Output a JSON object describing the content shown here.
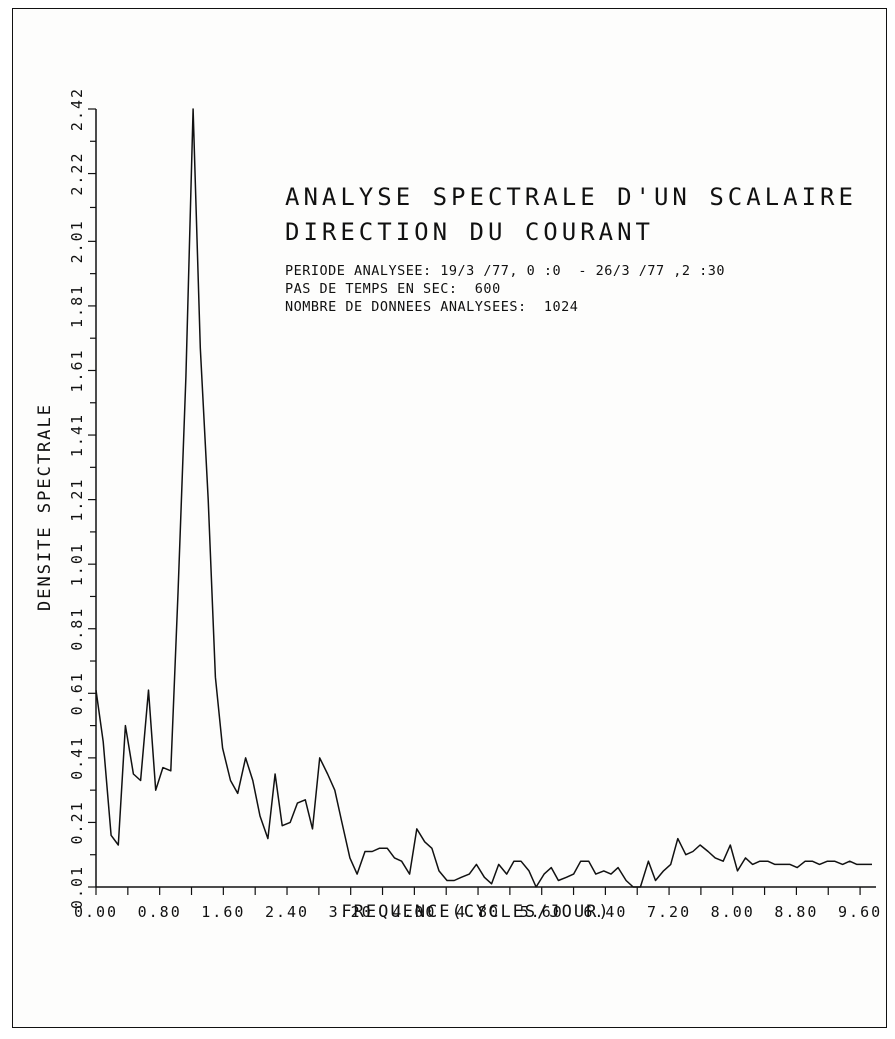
{
  "chart_data": {
    "type": "line",
    "title": "ANALYSE SPECTRALE D'UN SCALAIRE",
    "subtitle": "DIRECTION DU COURANT",
    "annotations": [
      "PERIODE ANALYSEE: 19/3 /77, 0 :0  - 26/3 /77 ,2 :30",
      "PAS DE TEMPS EN SEC:  600",
      "NOMBRE DE DONNEES ANALYSEES:  1024"
    ],
    "xlabel": "FREQUENCE(CYCLES/JOUR)",
    "ylabel": "DENSITE SPECTRALE",
    "x_ticks": [
      "0.00",
      "0.80",
      "1.60",
      "2.40",
      "3.20",
      "4.00",
      "4.80",
      "5.60",
      "6.40",
      "7.20",
      "8.00",
      "8.80",
      "9.60"
    ],
    "y_ticks": [
      "0.01",
      "0.21",
      "0.41",
      "0.61",
      "0.81",
      "1.01",
      "1.21",
      "1.41",
      "1.61",
      "1.81",
      "2.01",
      "2.22",
      "2.42"
    ],
    "xlim": [
      0,
      9.8
    ],
    "ylim": [
      0.01,
      2.42
    ],
    "grid": false,
    "series": [
      {
        "x": [
          0.0,
          0.09,
          0.19,
          0.28,
          0.37,
          0.47,
          0.56,
          0.66,
          0.75,
          0.84,
          0.94,
          1.03,
          1.13,
          1.22,
          1.31,
          1.41,
          1.5,
          1.59,
          1.69,
          1.78,
          1.88,
          1.97,
          2.06,
          2.16,
          2.25,
          2.34,
          2.44,
          2.53,
          2.63,
          2.72,
          2.81,
          2.91,
          3.0,
          3.09,
          3.19,
          3.28,
          3.38,
          3.47,
          3.56,
          3.66,
          3.75,
          3.84,
          3.94,
          4.03,
          4.13,
          4.22,
          4.31,
          4.41,
          4.5,
          4.59,
          4.69,
          4.78,
          4.88,
          4.97,
          5.06,
          5.16,
          5.25,
          5.34,
          5.44,
          5.53,
          5.63,
          5.72,
          5.81,
          5.91,
          6.0,
          6.09,
          6.19,
          6.28,
          6.38,
          6.47,
          6.56,
          6.66,
          6.75,
          6.84,
          6.94,
          7.03,
          7.13,
          7.22,
          7.31,
          7.41,
          7.5,
          7.59,
          7.69,
          7.78,
          7.88,
          7.97,
          8.06,
          8.16,
          8.25,
          8.34,
          8.44,
          8.53,
          8.63,
          8.72,
          8.81,
          8.91,
          9.0,
          9.09,
          9.19,
          9.28,
          9.38,
          9.47,
          9.56,
          9.66,
          9.75
        ],
        "values": [
          0.62,
          0.46,
          0.17,
          0.14,
          0.51,
          0.36,
          0.34,
          0.62,
          0.31,
          0.38,
          0.37,
          0.92,
          1.59,
          2.42,
          1.68,
          1.21,
          0.66,
          0.44,
          0.34,
          0.3,
          0.41,
          0.34,
          0.23,
          0.16,
          0.36,
          0.2,
          0.21,
          0.27,
          0.28,
          0.19,
          0.41,
          0.36,
          0.31,
          0.21,
          0.1,
          0.05,
          0.12,
          0.12,
          0.13,
          0.13,
          0.1,
          0.09,
          0.05,
          0.19,
          0.15,
          0.13,
          0.06,
          0.03,
          0.03,
          0.04,
          0.05,
          0.08,
          0.04,
          0.02,
          0.08,
          0.05,
          0.09,
          0.09,
          0.06,
          0.0,
          0.05,
          0.07,
          0.03,
          0.04,
          0.05,
          0.09,
          0.09,
          0.05,
          0.06,
          0.05,
          0.07,
          0.03,
          0.0,
          0.0,
          0.09,
          0.03,
          0.06,
          0.08,
          0.16,
          0.11,
          0.12,
          0.14,
          0.12,
          0.1,
          0.09,
          0.14,
          0.06,
          0.1,
          0.08,
          0.09,
          0.09,
          0.08,
          0.08,
          0.08,
          0.07,
          0.09,
          0.09,
          0.08,
          0.09,
          0.09,
          0.08,
          0.09,
          0.08,
          0.08,
          0.08
        ]
      }
    ]
  }
}
